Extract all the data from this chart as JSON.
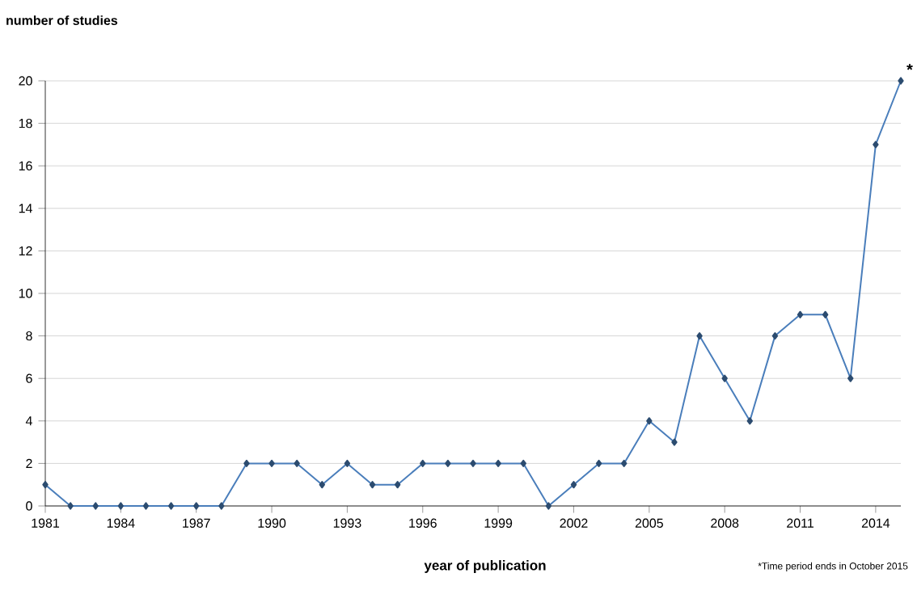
{
  "chart_data": {
    "type": "line",
    "ylabel": "number of studies",
    "xlabel": "year of publication",
    "x": [
      1981,
      1982,
      1983,
      1984,
      1985,
      1986,
      1987,
      1988,
      1989,
      1990,
      1991,
      1992,
      1993,
      1994,
      1995,
      1996,
      1997,
      1998,
      1999,
      2000,
      2001,
      2002,
      2003,
      2004,
      2005,
      2006,
      2007,
      2008,
      2009,
      2010,
      2011,
      2012,
      2013,
      2014,
      2015
    ],
    "series": [
      {
        "color": "#4a7ebb",
        "values": [
          1,
          0,
          0,
          0,
          0,
          0,
          0,
          0,
          2,
          2,
          2,
          1,
          2,
          1,
          1,
          2,
          2,
          2,
          2,
          2,
          0,
          1,
          2,
          2,
          4,
          3,
          8,
          6,
          4,
          8,
          9,
          9,
          6,
          17,
          20
        ]
      }
    ],
    "xlim": [
      1981,
      2015
    ],
    "xticks": [
      1981,
      1984,
      1987,
      1990,
      1993,
      1996,
      1999,
      2002,
      2005,
      2008,
      2011,
      2014
    ],
    "ylim": [
      0,
      20
    ],
    "yticks": [
      0,
      2,
      4,
      6,
      8,
      10,
      12,
      14,
      16,
      18,
      20
    ],
    "grid": "y",
    "marker": "diamond",
    "line_style": "solid",
    "annotations": [
      {
        "text": "*",
        "x": 2015,
        "y": 20
      },
      "*Time period ends in October 2015"
    ]
  }
}
